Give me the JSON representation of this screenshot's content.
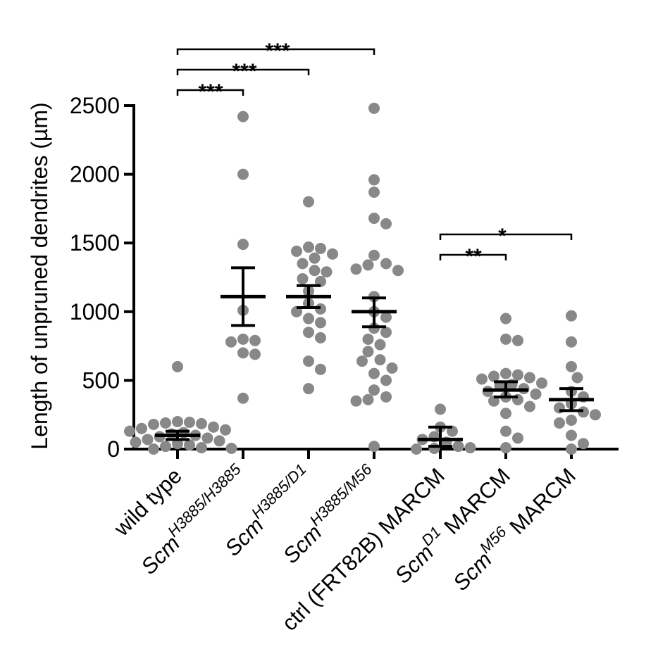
{
  "chart_data": {
    "type": "scatter",
    "title": "",
    "xlabel": "",
    "ylabel": "Length of unpruned dendrites (µm)",
    "ylim": [
      0,
      2500
    ],
    "yticks": [
      0,
      500,
      1000,
      1500,
      2000,
      2500
    ],
    "yticklabels": [
      "0",
      "500",
      "1000",
      "1500",
      "2000",
      "2500"
    ],
    "grid": false,
    "legend": "none",
    "colors": {
      "points": "#888888",
      "bars": "#000000"
    },
    "categories": [
      {
        "label": "wild type",
        "base": "",
        "sup": "",
        "suffix": ""
      },
      {
        "label": "Scm H3885/H3885",
        "base": "Scm",
        "sup": "H3885/H3885",
        "suffix": ""
      },
      {
        "label": "Scm H3885/D1",
        "base": "Scm",
        "sup": "H3885/D1",
        "suffix": ""
      },
      {
        "label": "Scm H3885/M56",
        "base": "Scm",
        "sup": "H3885/M56",
        "suffix": ""
      },
      {
        "label": "ctrl (FRT82B) MARCM",
        "base": "",
        "sup": "",
        "suffix": ""
      },
      {
        "label": "Scm D1 MARCM",
        "base": "Scm",
        "sup": "D1",
        "suffix": " MARCM"
      },
      {
        "label": "Scm M56 MARCM",
        "base": "Scm",
        "sup": "M56",
        "suffix": " MARCM"
      }
    ],
    "series": [
      {
        "category": "wild type",
        "mean": 100,
        "sem": [
          70,
          130
        ],
        "points": [
          600,
          200,
          195,
          190,
          185,
          180,
          160,
          150,
          140,
          130,
          120,
          110,
          100,
          90,
          80,
          70,
          60,
          50,
          40,
          30,
          20,
          10,
          5,
          0
        ]
      },
      {
        "category": "Scm H3885/H3885",
        "mean": 1110,
        "sem": [
          900,
          1320
        ],
        "points": [
          2420,
          2000,
          1490,
          1010,
          800,
          790,
          780,
          700,
          690,
          370
        ]
      },
      {
        "category": "Scm H3885/D1",
        "mean": 1110,
        "sem": [
          1030,
          1190
        ],
        "points": [
          1800,
          1470,
          1460,
          1440,
          1420,
          1390,
          1350,
          1300,
          1290,
          1240,
          1220,
          1150,
          1060,
          1020,
          1000,
          950,
          920,
          850,
          810,
          640,
          580,
          440
        ]
      },
      {
        "category": "Scm H3885/M56",
        "mean": 1000,
        "sem": [
          890,
          1100
        ],
        "points": [
          2480,
          1960,
          1870,
          1680,
          1640,
          1410,
          1350,
          1340,
          1310,
          1300,
          1110,
          1000,
          960,
          880,
          850,
          800,
          760,
          710,
          650,
          640,
          590,
          550,
          500,
          430,
          380,
          360,
          350,
          20
        ]
      },
      {
        "category": "ctrl (FRT82B) MARCM",
        "mean": 70,
        "sem": [
          20,
          160
        ],
        "points": [
          290,
          160,
          130,
          90,
          70,
          50,
          20,
          10,
          5,
          0
        ]
      },
      {
        "category": "Scm D1 MARCM",
        "mean": 430,
        "sem": [
          380,
          490
        ],
        "points": [
          950,
          800,
          790,
          550,
          540,
          530,
          520,
          510,
          480,
          470,
          460,
          440,
          420,
          400,
          380,
          360,
          350,
          310,
          260,
          130,
          80,
          10
        ]
      },
      {
        "category": "Scm M56 MARCM",
        "mean": 360,
        "sem": [
          280,
          440
        ],
        "points": [
          970,
          780,
          600,
          520,
          420,
          380,
          330,
          300,
          270,
          250,
          210,
          190,
          100,
          40,
          0
        ]
      }
    ],
    "annotations": [
      {
        "from": "wild type",
        "to": "Scm H3885/H3885",
        "label": "***"
      },
      {
        "from": "wild type",
        "to": "Scm H3885/D1",
        "label": "***"
      },
      {
        "from": "wild type",
        "to": "Scm H3885/M56",
        "label": "***"
      },
      {
        "from": "ctrl (FRT82B) MARCM",
        "to": "Scm D1 MARCM",
        "label": "**"
      },
      {
        "from": "ctrl (FRT82B) MARCM",
        "to": "Scm M56 MARCM",
        "label": "*"
      }
    ]
  }
}
